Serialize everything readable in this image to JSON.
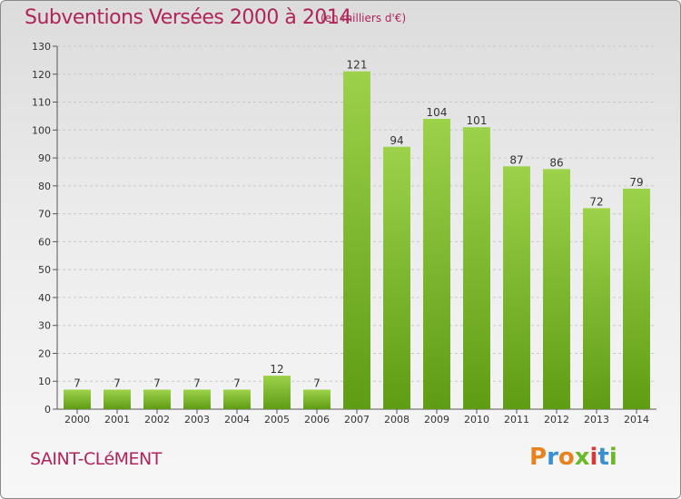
{
  "header": {
    "title": "Subventions Versées 2000 à 2014",
    "unit": "(en milliers d'€)"
  },
  "footer": {
    "commune": "SAINT-CLéMENT",
    "logo_text": "Proxiti"
  },
  "colors": {
    "bar_light": "#9cd24a",
    "bar_dark": "#5e9c14",
    "title": "#b0245a",
    "grid": "#c8c8c8"
  },
  "chart_data": {
    "type": "bar",
    "title": "Subventions Versées 2000 à 2014",
    "ylabel": "en milliers d'€",
    "xlabel": "",
    "categories": [
      "2000",
      "2001",
      "2002",
      "2003",
      "2004",
      "2005",
      "2006",
      "2007",
      "2008",
      "2009",
      "2010",
      "2011",
      "2012",
      "2013",
      "2014"
    ],
    "values": [
      7,
      7,
      7,
      7,
      7,
      12,
      7,
      121,
      94,
      104,
      101,
      87,
      86,
      72,
      79
    ],
    "ylim": [
      0,
      130
    ],
    "yticks": [
      0,
      10,
      20,
      30,
      40,
      50,
      60,
      70,
      80,
      90,
      100,
      110,
      120,
      130
    ],
    "grid": true
  }
}
